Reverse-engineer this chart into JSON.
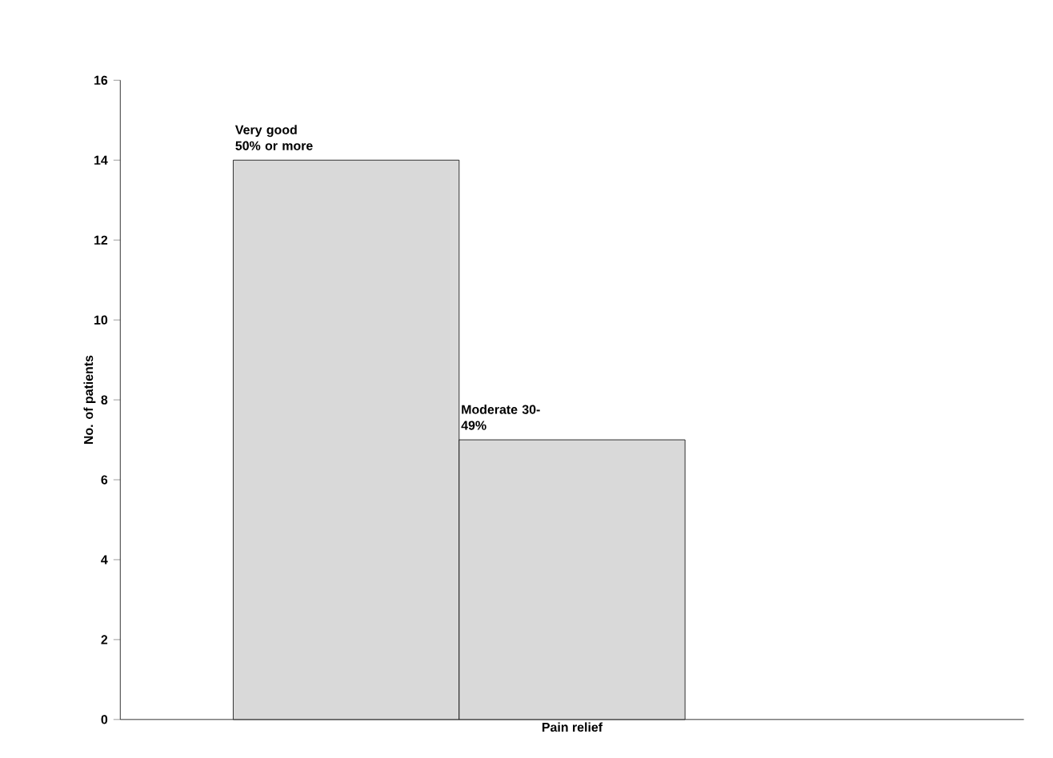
{
  "chart_data": {
    "type": "bar",
    "xlabel": "Pain relief",
    "ylabel": "No. of patients",
    "categories": [
      null,
      null,
      null
    ],
    "values": [
      14,
      7,
      null
    ],
    "annotations": [
      {
        "text": "Very good 50% or more",
        "y": 14
      },
      {
        "text": "Moderate 30-49%",
        "y": 7
      }
    ],
    "color": "#d9d9d9",
    "ylim": [
      0,
      16
    ],
    "yticks": [
      0,
      2,
      4,
      6,
      8,
      10,
      12,
      14,
      16
    ],
    "grid": false
  }
}
